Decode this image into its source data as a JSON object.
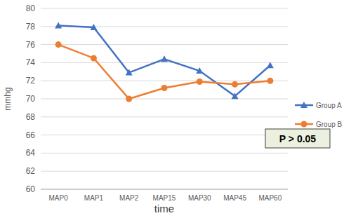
{
  "chart_data": {
    "type": "line",
    "x_label": "time",
    "y_label": "mmhg",
    "categories": [
      "MAP0",
      "MAP1",
      "MAP2",
      "MAP15",
      "MAP30",
      "MAP45",
      "MAP60"
    ],
    "series": [
      {
        "name": "Group A",
        "color": "#4472c4",
        "marker": "triangle",
        "values": [
          78.1,
          77.9,
          72.9,
          74.4,
          73.1,
          70.3,
          73.7
        ]
      },
      {
        "name": "Group B",
        "color": "#ed7d31",
        "marker": "circle",
        "values": [
          76.0,
          74.5,
          70.0,
          71.2,
          71.9,
          71.6,
          72.0
        ]
      }
    ],
    "ylim": [
      60,
      80
    ],
    "yticks": [
      60,
      62,
      64,
      66,
      68,
      70,
      72,
      74,
      76,
      78,
      80
    ],
    "grid": true,
    "legend": "right",
    "annotations": [
      "P > 0.05"
    ]
  }
}
